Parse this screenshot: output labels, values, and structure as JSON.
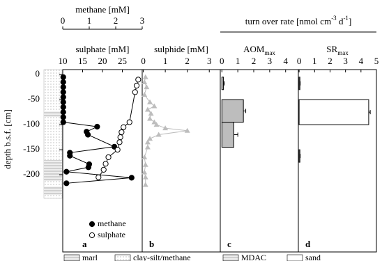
{
  "depth_axis": {
    "label": "depth b.s.f. [cm]",
    "ylim": [
      10,
      -350
    ],
    "yticks": [
      0,
      -50,
      -100,
      -150,
      -200
    ]
  },
  "turn_over_header": {
    "parts": [
      {
        "text": "turn over rate [nmol cm"
      },
      {
        "text": "-3",
        "sup": true
      },
      {
        "text": " d"
      },
      {
        "text": "-1",
        "sup": true
      },
      {
        "text": "]"
      }
    ]
  },
  "lithology_legend": [
    "marl",
    "clay-silt/methane",
    "MDAC",
    "sand"
  ],
  "chart_data": [
    {
      "type": "line",
      "panel": "a",
      "xlabel": "sulphate [mM]",
      "xlim": [
        10,
        30
      ],
      "xticks": [
        10,
        15,
        20,
        25
      ],
      "x2label": "methane [mM]",
      "x2lim": [
        0,
        3
      ],
      "x2ticks": [
        0,
        1,
        2,
        3
      ],
      "series": [
        {
          "name": "methane",
          "axis": "x2",
          "marker": "filled",
          "color": "#000",
          "depth": [
            -5,
            -15,
            -25,
            -35,
            -45,
            -55,
            -65,
            -75,
            -85,
            -95,
            -104,
            -114,
            -120,
            -144,
            -156,
            -162,
            -179,
            -185,
            -194,
            -206,
            -217
          ],
          "values": [
            0.02,
            0.02,
            0.02,
            0.02,
            0.02,
            0.02,
            0.02,
            0.02,
            0.02,
            0.02,
            1.3,
            0.9,
            0.95,
            1.95,
            0.27,
            0.27,
            1.0,
            0.97,
            0.14,
            2.6,
            0.14
          ]
        },
        {
          "name": "sulphate",
          "axis": "x",
          "marker": "open",
          "color": "#000",
          "depth": [
            -10,
            -22,
            -35,
            -95,
            -105,
            -115,
            -125,
            -135,
            -150,
            -165,
            -178,
            -190,
            -205
          ],
          "values": [
            29,
            28.6,
            28.2,
            26.8,
            25.3,
            24.8,
            24.5,
            24.3,
            23.8,
            21.5,
            20.8,
            20.3,
            19
          ]
        }
      ]
    },
    {
      "type": "scatter",
      "panel": "b",
      "xlabel": "sulphide [mM]",
      "xlim": [
        -0.05,
        3.5
      ],
      "xticks": [
        0,
        1,
        2,
        3
      ],
      "color": "#bdbdbd",
      "depth": [
        -5,
        -15,
        -25,
        -40,
        -55,
        -63,
        -70,
        -78,
        -88,
        -95,
        -100,
        -107,
        -112,
        -120,
        -128,
        -135,
        -145,
        -165,
        -180,
        -195,
        -205,
        -220
      ],
      "values": [
        0.1,
        0.05,
        0.15,
        0.05,
        0.3,
        0.5,
        0.2,
        0.35,
        0.3,
        0.5,
        0.6,
        1.0,
        2.0,
        0.7,
        0.3,
        0.2,
        0.2,
        0.05,
        0.1,
        0.05,
        0.1,
        0.1
      ]
    },
    {
      "type": "bar",
      "panel": "c",
      "xlabel": {
        "text": "AOM",
        "sub": "max"
      },
      "xlim": [
        -0.1,
        4.8
      ],
      "xticks": [
        0,
        1,
        2,
        3,
        4
      ],
      "color": "#bdbdbd",
      "depth_top": [
        -5,
        -50,
        -95
      ],
      "depth_bottom": [
        -30,
        -95,
        -145
      ],
      "values": [
        0.1,
        1.35,
        0.75
      ],
      "errors": [
        0.05,
        0.15,
        0.25
      ]
    },
    {
      "type": "bar",
      "panel": "d",
      "xlabel": {
        "text": "SR",
        "sub": "max"
      },
      "xlim": [
        -0.05,
        5
      ],
      "xticks": [
        0,
        1,
        2,
        3,
        4,
        5
      ],
      "color": "#ffffff",
      "depth_top": [
        -5,
        -50,
        -150
      ],
      "depth_bottom": [
        -30,
        -100,
        -175
      ],
      "values": [
        0.05,
        4.5,
        0.05
      ],
      "errors": [
        0.02,
        0.1,
        0.02
      ]
    }
  ]
}
